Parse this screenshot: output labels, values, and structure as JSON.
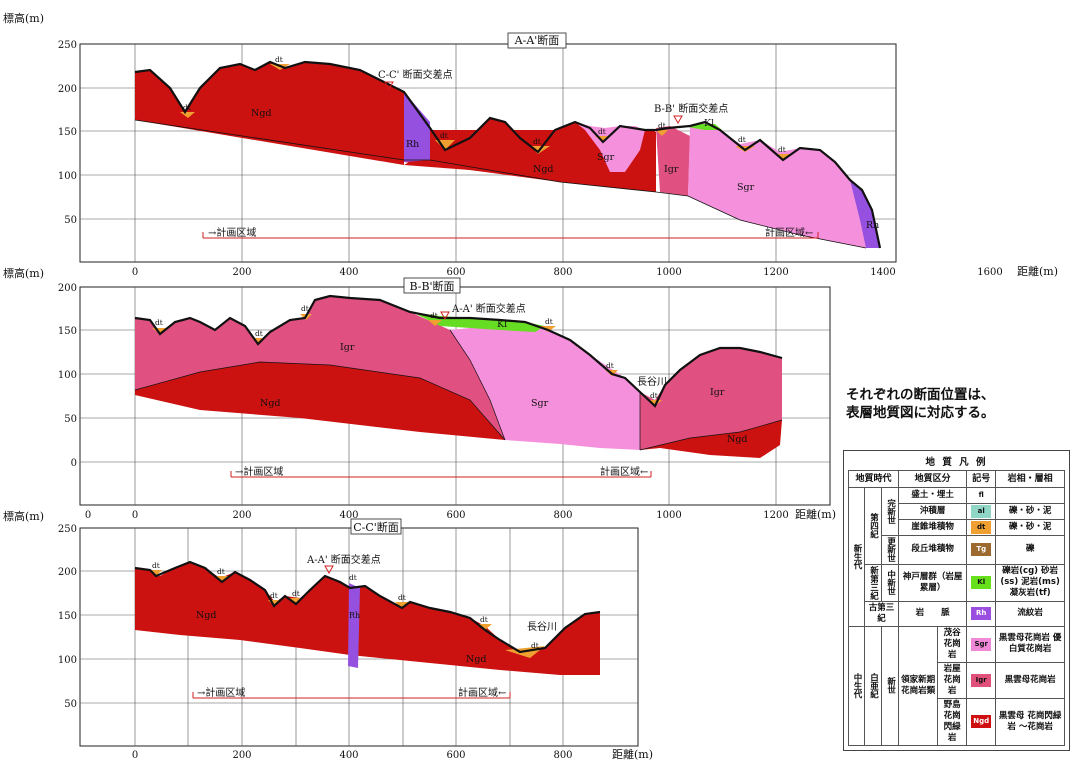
{
  "sections": {
    "a": {
      "title": "A-A'断面",
      "ylabel": "標高(m)",
      "xlabel": "距離(m)",
      "yticks": [
        "250",
        "200",
        "150",
        "100",
        "50"
      ],
      "xticks": [
        "0",
        "200",
        "400",
        "600",
        "800",
        "1000",
        "1200",
        "1400",
        "1600"
      ],
      "plan_left": "→計画区域",
      "plan_right": "計画区域←",
      "cross_label": "C-C' 断面交差点",
      "cross_label2": "B-B' 断面交差点",
      "units": [
        "Ngd",
        "Rh",
        "Sgr",
        "Igr",
        "Sgr",
        "Rh",
        "Kl"
      ],
      "dt": "dt"
    },
    "b": {
      "title": "B-B'断面",
      "ylabel": "標高(m)",
      "xlabel": "距離(m)",
      "yticks": [
        "200",
        "150",
        "100",
        "50",
        "0"
      ],
      "xticks": [
        "0",
        "200",
        "400",
        "600",
        "800",
        "1000",
        "1200"
      ],
      "plan_left": "→計画区域",
      "plan_right": "計画区域←",
      "cross_label": "A-A' 断面交差点",
      "river": "長谷川",
      "units": [
        "Igr",
        "Ngd",
        "Sgr",
        "Igr",
        "Ngd",
        "Kl"
      ],
      "dt": "dt"
    },
    "c": {
      "title": "C-C'断面",
      "ylabel": "標高(m)",
      "xlabel": "距離(m)",
      "yticks": [
        "250",
        "200",
        "150",
        "100",
        "50"
      ],
      "xticks": [
        "0",
        "200",
        "400",
        "600",
        "800"
      ],
      "plan_left": "→計画区域",
      "plan_right": "計画区域←",
      "cross_label": "A-A' 断面交差点",
      "river": "長谷川",
      "units": [
        "Ngd",
        "Rh",
        "Ngd"
      ],
      "dt": "dt"
    }
  },
  "note_lines": [
    "それぞれの断面位置は、",
    "表層地質図に対応する。"
  ],
  "legend": {
    "title": "地 質 凡 例",
    "headers": [
      "地質時代",
      "地質区分",
      "記号",
      "岩相・層相"
    ],
    "rows": [
      {
        "era": "新生代",
        "period": "第四紀",
        "epoch": "完新世",
        "name": "盛土・埋土",
        "symbol": "fl",
        "color": "#ffffff",
        "rock": ""
      },
      {
        "name": "沖積層",
        "symbol": "al",
        "color": "#8fd6c6",
        "rock": "礫・砂・泥"
      },
      {
        "name": "崖錐堆積物",
        "symbol": "dt",
        "color": "#f0a030",
        "rock": "礫・砂・泥"
      },
      {
        "epoch": "更新世",
        "name": "段丘堆積物",
        "symbol": "Tg",
        "color": "#9c6a2e",
        "rock": "礫"
      },
      {
        "period": "新第三紀",
        "epoch": "中新世",
        "name": "神戸層群（岩屋累層）",
        "symbol": "Kl",
        "color": "#66e01a",
        "rock": "礫岩(cg) 砂岩(ss) 泥岩(ms) 凝灰岩(tf)"
      },
      {
        "period": "古第三紀",
        "name": "岩　　脈",
        "symbol": "Rh",
        "color": "#9a4fe0",
        "rock": "流紋岩"
      },
      {
        "era": "中生代",
        "period": "白亜紀",
        "epoch": "新世",
        "group": "領家新期花崗岩類",
        "name": "茂谷花崗岩",
        "symbol": "Sgr",
        "color": "#f08ad8",
        "rock": "黒雲母花崗岩 優白質花崗岩"
      },
      {
        "name": "岩屋花崗岩",
        "symbol": "Igr",
        "color": "#e0507a",
        "rock": "黒雲母花崗岩"
      },
      {
        "name": "野島花崗閃緑岩",
        "symbol": "Ngd",
        "color": "#d01010",
        "rock": "黒雲母 花崗閃緑岩 〜花崗岩"
      }
    ]
  },
  "colors": {
    "Ngd": "#cc1111",
    "Igr": "#e05080",
    "Sgr": "#f590dc",
    "Rh": "#9550e0",
    "Kl": "#66dd22",
    "dt": "#f0a030",
    "cross": "#d02020"
  }
}
